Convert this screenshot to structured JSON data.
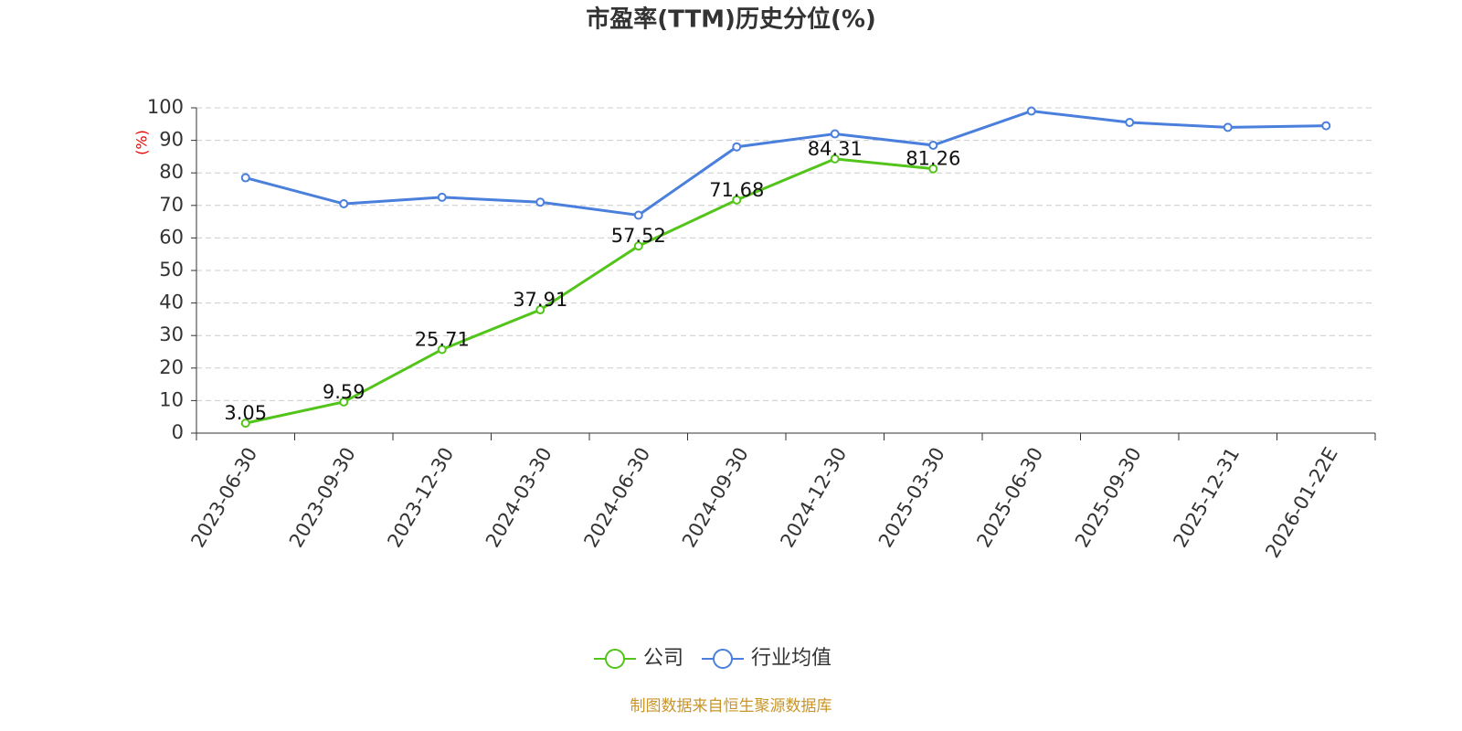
{
  "chart_data": {
    "type": "line",
    "title": "市盈率(TTM)历史分位(%)",
    "y_label": "(%)",
    "source": "制图数据来自恒生聚源数据库",
    "categories": [
      "2023-06-30",
      "2023-09-30",
      "2023-12-30",
      "2024-03-30",
      "2024-06-30",
      "2024-09-30",
      "2024-12-30",
      "2025-03-30",
      "2025-06-30",
      "2025-09-30",
      "2025-12-31",
      "2026-01-22E"
    ],
    "series": [
      {
        "name": "公司",
        "color": "#52c41a",
        "show_labels": true,
        "values": [
          3.05,
          9.59,
          25.71,
          37.91,
          57.52,
          71.68,
          84.31,
          81.26,
          null,
          null,
          null,
          null
        ]
      },
      {
        "name": "行业均值",
        "color": "#4a7fdc",
        "show_labels": false,
        "values": [
          78.5,
          70.5,
          72.5,
          71,
          67,
          88,
          92,
          88.5,
          99,
          95.5,
          94,
          94.5
        ]
      }
    ],
    "ylim": [
      0,
      100
    ],
    "yticks": [
      0,
      10,
      20,
      30,
      40,
      50,
      60,
      70,
      80,
      90,
      100
    ],
    "grid": true,
    "legend": "bottom"
  }
}
